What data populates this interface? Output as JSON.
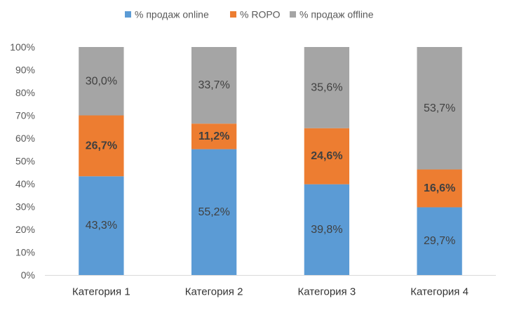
{
  "chart_data": {
    "type": "bar",
    "stacked": true,
    "categories": [
      "Категория 1",
      "Категория 2",
      "Категория 3",
      "Категория 4"
    ],
    "series": [
      {
        "name": "% продаж online",
        "color": "#5B9BD5",
        "values": [
          43.3,
          55.2,
          39.8,
          29.7
        ],
        "labels": [
          "43,3%",
          "55,2%",
          "39,8%",
          "29,7%"
        ]
      },
      {
        "name": "% ROPO",
        "color": "#ED7D31",
        "values": [
          26.7,
          11.2,
          24.6,
          16.6
        ],
        "labels": [
          "26,7%",
          "11,2%",
          "24,6%",
          "16,6%"
        ]
      },
      {
        "name": "% продаж offline",
        "color": "#A5A5A5",
        "values": [
          30.0,
          33.7,
          35.6,
          53.7
        ],
        "labels": [
          "30,0%",
          "33,7%",
          "35,6%",
          "53,7%"
        ]
      }
    ],
    "ylim": [
      0,
      100
    ],
    "yticks": [
      {
        "value": 0,
        "label": "0%"
      },
      {
        "value": 10,
        "label": "10%"
      },
      {
        "value": 20,
        "label": "20%"
      },
      {
        "value": 30,
        "label": "30%"
      },
      {
        "value": 40,
        "label": "40%"
      },
      {
        "value": 50,
        "label": "50%"
      },
      {
        "value": 60,
        "label": "60%"
      },
      {
        "value": 70,
        "label": "70%"
      },
      {
        "value": 80,
        "label": "80%"
      },
      {
        "value": 90,
        "label": "90%"
      },
      {
        "value": 100,
        "label": "100%"
      }
    ],
    "grid": false,
    "legend": "top"
  }
}
